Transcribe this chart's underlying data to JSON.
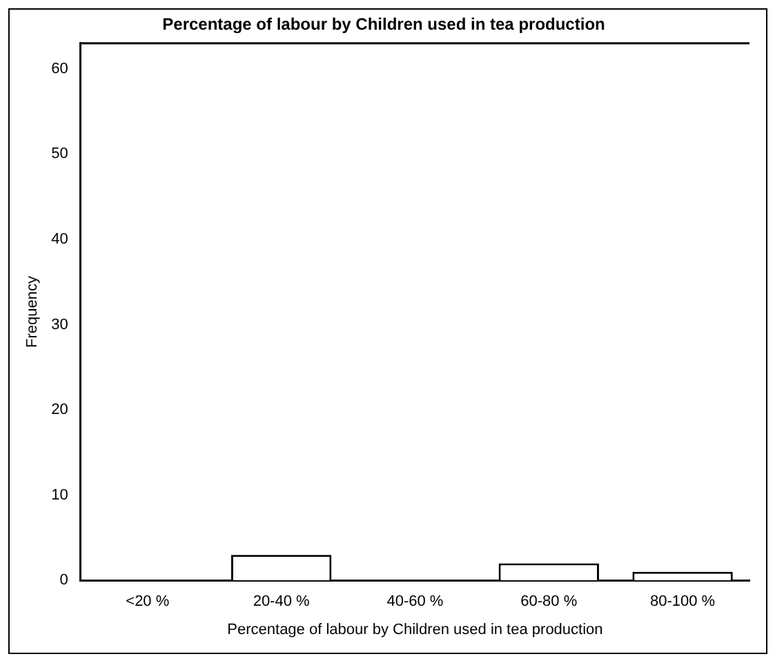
{
  "chart_data": {
    "type": "bar",
    "title": "Percentage of labour by Children used in tea production",
    "xlabel": "Percentage of labour by Children used in tea production",
    "ylabel": "Frequency",
    "categories": [
      "<20 %",
      "20-40 %",
      "40-60 %",
      "60-80 %",
      "80-100 %"
    ],
    "values": [
      0,
      3,
      0,
      2,
      1
    ],
    "color": "#ffffff",
    "ylim": [
      0,
      63
    ],
    "yticks": [
      0,
      10,
      20,
      30,
      40,
      50,
      60
    ],
    "grid": false,
    "legend": false
  }
}
